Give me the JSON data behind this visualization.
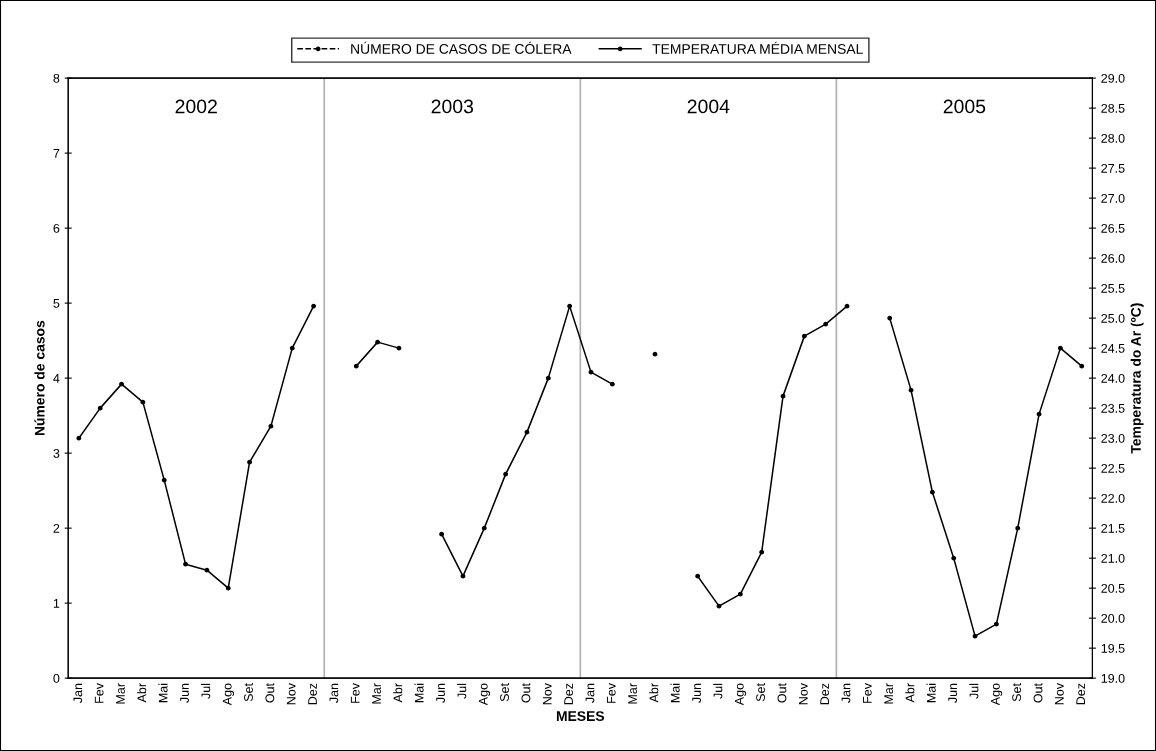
{
  "chart_data": {
    "type": "line",
    "xlabel": "MESES",
    "ylabel": "Número de casos",
    "y2label": "Temperatura do Ar (ºC)",
    "annotations": [
      "2002",
      "2003",
      "2004",
      "2005"
    ],
    "categories": [
      "Jan",
      "Fev",
      "Mar",
      "Abr",
      "Mai",
      "Jun",
      "Jul",
      "Ago",
      "Set",
      "Out",
      "Nov",
      "Dez",
      "Jan",
      "Fev",
      "Mar",
      "Abr",
      "Mai",
      "Jun",
      "Jul",
      "Ago",
      "Set",
      "Out",
      "Nov",
      "Dez",
      "Jan",
      "Fev",
      "Mar",
      "Abr",
      "Mai",
      "Jun",
      "Jul",
      "Ago",
      "Set",
      "Out",
      "Nov",
      "Dez",
      "Jan",
      "Fev",
      "Mar",
      "Abr",
      "Mai",
      "Jun",
      "Jul",
      "Ago",
      "Set",
      "Out",
      "Nov",
      "Dez"
    ],
    "series": [
      {
        "name": "NÚMERO DE CASOS DE CÓLERA",
        "color": "#000000",
        "line_style": "dashed",
        "marker": "circle",
        "values": [
          null,
          null,
          null,
          null,
          null,
          null,
          null,
          null,
          null,
          null,
          null,
          null,
          null,
          null,
          null,
          null,
          null,
          null,
          null,
          null,
          null,
          null,
          null,
          null,
          null,
          null,
          null,
          null,
          null,
          null,
          null,
          null,
          null,
          null,
          null,
          null,
          null,
          null,
          null,
          null,
          null,
          null,
          null,
          null,
          null,
          null,
          null,
          null
        ]
      },
      {
        "name": "TEMPERATURA MÉDIA MENSAL",
        "color": "#000000",
        "line_style": "solid",
        "marker": "circle",
        "axis": "y2",
        "values": [
          23.0,
          23.5,
          23.9,
          23.6,
          22.3,
          20.9,
          20.8,
          20.5,
          22.6,
          23.2,
          24.5,
          25.2,
          null,
          24.2,
          24.6,
          24.5,
          null,
          21.4,
          20.7,
          21.5,
          22.4,
          23.1,
          24.0,
          25.2,
          24.1,
          23.9,
          null,
          24.4,
          null,
          20.7,
          20.2,
          20.4,
          21.1,
          23.7,
          24.7,
          24.9,
          25.2,
          null,
          25.0,
          23.8,
          22.1,
          21.0,
          19.7,
          19.9,
          21.5,
          23.4,
          24.5,
          24.2
        ]
      }
    ],
    "ylim": [
      0,
      8
    ],
    "yticks": [
      0,
      1,
      2,
      3,
      4,
      5,
      6,
      7,
      8
    ],
    "y2lim": [
      19,
      29
    ],
    "y2ticks": [
      {
        "value": 19,
        "label": "19.0"
      },
      {
        "value": 19.5,
        "label": "19.5"
      },
      {
        "value": 20,
        "label": "20.0"
      },
      {
        "value": 20.5,
        "label": "20.5"
      },
      {
        "value": 21,
        "label": "21.0"
      },
      {
        "value": 21.5,
        "label": "21.5"
      },
      {
        "value": 22,
        "label": "22.0"
      },
      {
        "value": 22.5,
        "label": "22.5"
      },
      {
        "value": 23,
        "label": "23.0"
      },
      {
        "value": 23.5,
        "label": "23.5"
      },
      {
        "value": 24,
        "label": "24.0"
      },
      {
        "value": 24.5,
        "label": "24.5"
      },
      {
        "value": 25,
        "label": "25.0"
      },
      {
        "value": 25.5,
        "label": "25.5"
      },
      {
        "value": 26,
        "label": "26.0"
      },
      {
        "value": 26.5,
        "label": "26.5"
      },
      {
        "value": 27,
        "label": "27.0"
      },
      {
        "value": 27.5,
        "label": "27.5"
      },
      {
        "value": 28,
        "label": "28.0"
      },
      {
        "value": 28.5,
        "label": "28.5"
      },
      {
        "value": 29,
        "label": "29.0"
      }
    ],
    "grid": false,
    "legend": "top"
  }
}
